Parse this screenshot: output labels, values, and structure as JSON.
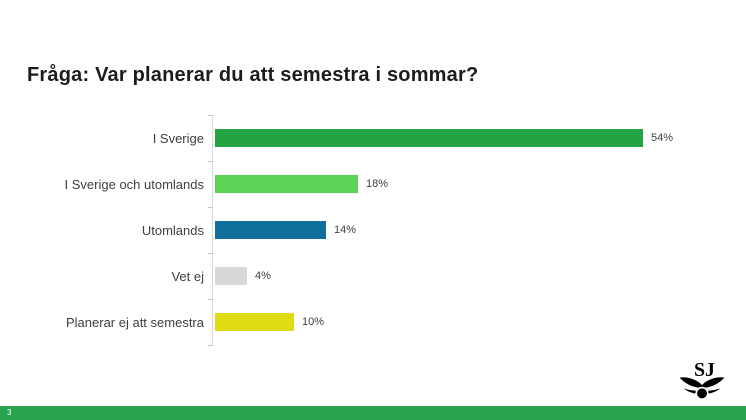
{
  "title": "Fråga: Var planerar du att semestra i sommar?",
  "footer": {
    "page_number": "3"
  },
  "logo": {
    "text": "SJ"
  },
  "colors": {
    "footer_green": "#28a44c",
    "axis_line": "#dadada",
    "label_text": "#404040"
  },
  "chart_data": {
    "type": "bar",
    "orientation": "horizontal",
    "title": "Fråga: Var planerar du att semestra i sommar?",
    "categories": [
      "I Sverige",
      "I Sverige och utomlands",
      "Utomlands",
      "Vet ej",
      "Planerar ej att semestra"
    ],
    "values": [
      54,
      18,
      14,
      4,
      10
    ],
    "value_labels": [
      "54%",
      "18%",
      "14%",
      "4%",
      "10%"
    ],
    "bar_colors": [
      "#23a344",
      "#5cd356",
      "#11709b",
      "#d8d8d8",
      "#e0dc14"
    ],
    "xlabel": "",
    "ylabel": "",
    "xlim": [
      0,
      60
    ],
    "grid": false,
    "legend": false
  }
}
